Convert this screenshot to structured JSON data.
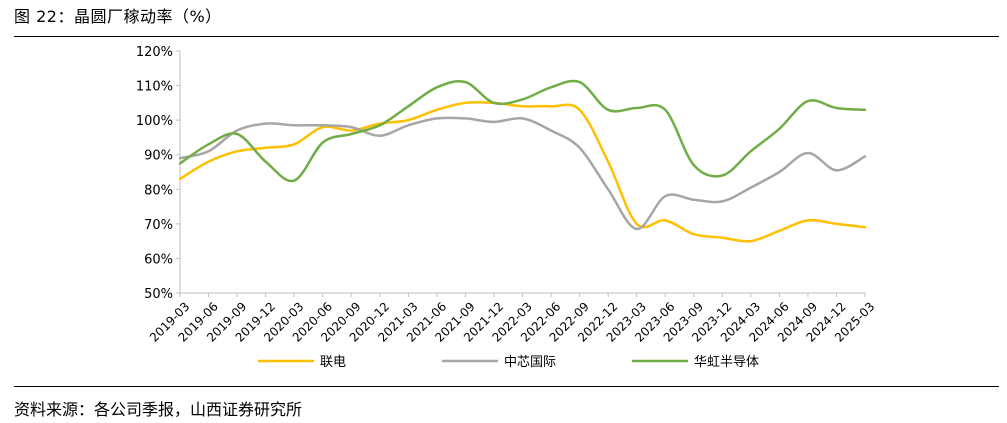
{
  "figure": {
    "title": "图 22：晶圆厂稼动率（%）",
    "source": "资料来源：各公司季报，山西证券研究所"
  },
  "chart_data": {
    "type": "line",
    "title": "晶圆厂稼动率（%）",
    "xlabel": "",
    "ylabel": "",
    "ylim": [
      50,
      120
    ],
    "yticks": [
      50,
      60,
      70,
      80,
      90,
      100,
      110,
      120
    ],
    "ytick_labels": [
      "50%",
      "60%",
      "70%",
      "80%",
      "90%",
      "100%",
      "110%",
      "120%"
    ],
    "grid": false,
    "legend_position": "bottom",
    "categories": [
      "2019-03",
      "2019-06",
      "2019-09",
      "2019-12",
      "2020-03",
      "2020-06",
      "2020-09",
      "2020-12",
      "2021-03",
      "2021-06",
      "2021-09",
      "2021-12",
      "2022-03",
      "2022-06",
      "2022-09",
      "2022-12",
      "2023-03",
      "2023-06",
      "2023-09",
      "2023-12",
      "2024-03",
      "2024-06",
      "2024-09",
      "2024-12",
      "2025-03"
    ],
    "series": [
      {
        "name": "联电",
        "color": "#FFC000",
        "values": [
          83,
          88,
          91,
          92,
          93,
          98,
          97,
          99,
          100,
          103,
          105,
          105,
          104,
          104,
          103,
          88,
          70,
          71,
          67,
          66,
          65,
          68,
          71,
          70,
          69
        ]
      },
      {
        "name": "中芯国际",
        "color": "#A6A6A6",
        "values": [
          89,
          91,
          97,
          99,
          98.5,
          98.5,
          98,
          95.5,
          98.5,
          100.5,
          100.5,
          99.5,
          100.5,
          97,
          92,
          80,
          68.5,
          78,
          77,
          76.5,
          80.5,
          85,
          90.5,
          85.5,
          89.5
        ]
      },
      {
        "name": "华虹半导体",
        "color": "#70AD47",
        "values": [
          87.5,
          93,
          96,
          88,
          82.5,
          93.5,
          96,
          98.5,
          104,
          109.5,
          111,
          105,
          106,
          109.5,
          111,
          103,
          103.5,
          103,
          87,
          84,
          91,
          97.5,
          105.5,
          103.5,
          103
        ]
      }
    ]
  }
}
